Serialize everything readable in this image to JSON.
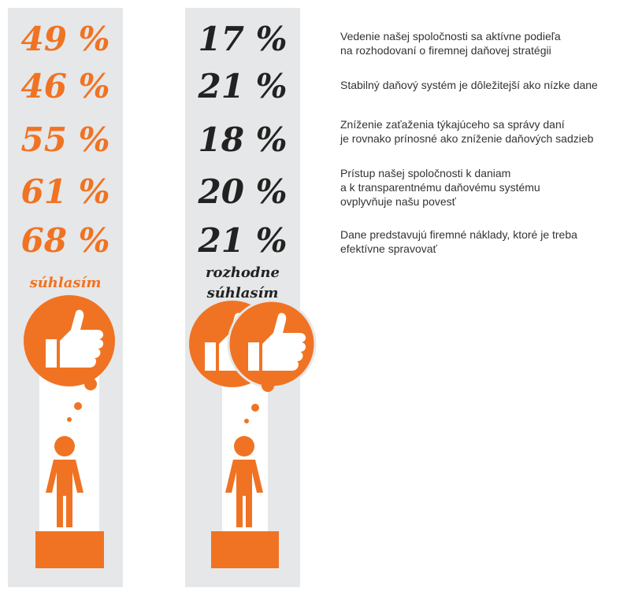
{
  "agree": {
    "values": [
      "49 %",
      "46 %",
      "55 %",
      "61 %",
      "68 %"
    ],
    "label": "súhlasím"
  },
  "strongly_agree": {
    "values": [
      "17 %",
      "21 %",
      "18 %",
      "20 %",
      "21 %"
    ],
    "label": [
      "rozhodne",
      "súhlasím"
    ]
  },
  "statements": [
    [
      "Vedenie našej spoločnosti sa aktívne podieľa",
      "na rozhodovaní o firemnej daňovej stratégii"
    ],
    [
      "Stabilný daňový systém je dôležitejší ako nízke dane"
    ],
    [
      "Zníženie zaťaženia týkajúceho sa správy daní",
      "je rovnako prínosné ako zníženie daňových sadzieb"
    ],
    [
      "Prístup našej spoločnosti k daniam",
      "a k transparentnému daňovému systému",
      "ovplyvňuje našu povesť"
    ],
    [
      "Dane predstavujú firemné náklady, ktoré je treba",
      "efektívne spravovať"
    ]
  ]
}
